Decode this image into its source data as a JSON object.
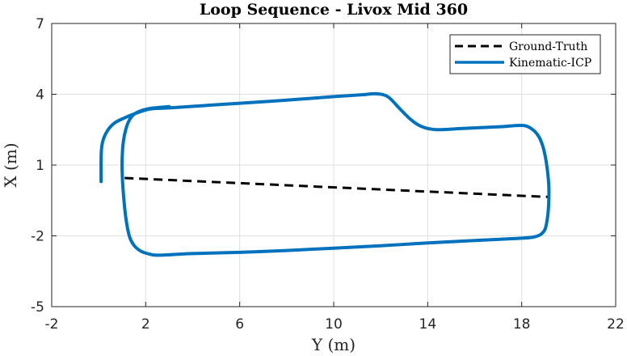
{
  "chart_data": {
    "type": "line",
    "title": "Loop Sequence - Livox Mid 360",
    "xlabel": "Y (m)",
    "ylabel": "X (m)",
    "xlim": [
      -2,
      22
    ],
    "ylim": [
      -5,
      7
    ],
    "xticks": [
      -2,
      2,
      6,
      10,
      14,
      18,
      22
    ],
    "yticks": [
      7,
      4,
      1,
      -2,
      -5
    ],
    "grid": true,
    "legend_position": "top-right",
    "series": [
      {
        "name": "Ground-Truth",
        "style": "dashed",
        "color": "#000000",
        "x": [
          1.1,
          19.1
        ],
        "y": [
          0.45,
          -0.35
        ]
      },
      {
        "name": "Kinematic-ICP",
        "style": "solid",
        "color": "#0072BD",
        "x": [
          0.1,
          0.1,
          0.12,
          0.2,
          0.4,
          0.7,
          1.1,
          1.6,
          2.2,
          3.0,
          4.5,
          6.0,
          8.0,
          10.0,
          11.2,
          11.8,
          12.3,
          12.8,
          13.2,
          13.6,
          14.0,
          14.5,
          15.5,
          17.0,
          18.0,
          18.4,
          18.7,
          18.9,
          19.05,
          19.15,
          19.15,
          19.1,
          19.0,
          18.8,
          18.5,
          18.0,
          16.0,
          14.0,
          12.0,
          10.0,
          8.0,
          6.0,
          4.0,
          2.6,
          2.2,
          1.8,
          1.5,
          1.3,
          1.15,
          1.05,
          1.0,
          1.0,
          1.05,
          1.15,
          1.3,
          1.5,
          1.8,
          2.2,
          2.6,
          3.0
        ],
        "y": [
          0.3,
          1.2,
          1.7,
          2.1,
          2.5,
          2.8,
          3.0,
          3.2,
          3.38,
          3.42,
          3.52,
          3.62,
          3.75,
          3.9,
          3.98,
          4.02,
          3.9,
          3.4,
          3.0,
          2.7,
          2.55,
          2.5,
          2.55,
          2.62,
          2.68,
          2.55,
          2.25,
          1.8,
          1.1,
          0.2,
          -0.6,
          -1.2,
          -1.7,
          -1.95,
          -2.05,
          -2.1,
          -2.2,
          -2.3,
          -2.42,
          -2.52,
          -2.62,
          -2.7,
          -2.75,
          -2.82,
          -2.78,
          -2.65,
          -2.4,
          -2.0,
          -1.2,
          -0.2,
          0.6,
          1.4,
          2.0,
          2.5,
          2.9,
          3.15,
          3.3,
          3.4,
          3.44,
          3.48
        ]
      }
    ]
  }
}
